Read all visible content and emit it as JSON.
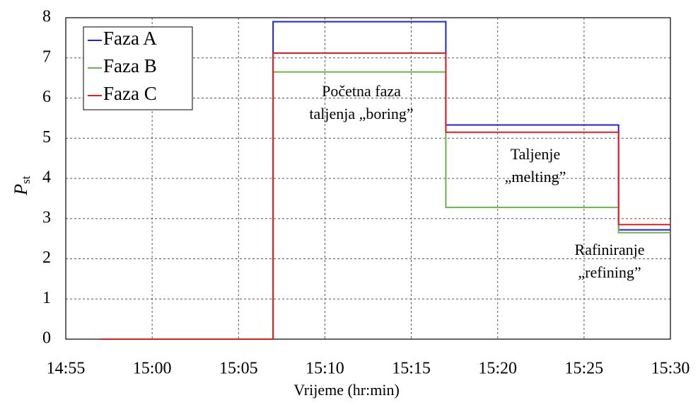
{
  "chart_data": {
    "type": "line",
    "step": "post",
    "xlabel": "Vrijeme (hr:min)",
    "ylabel": "P",
    "ylabel_sub": "st",
    "x": [
      "14:57",
      "15:07",
      "15:17",
      "15:27",
      "15:30"
    ],
    "series": [
      {
        "name": "Faza A",
        "color": "#2020e0",
        "values": [
          0,
          7.9,
          5.33,
          2.72,
          2.72
        ]
      },
      {
        "name": "Faza B",
        "color": "#6fb24a",
        "values": [
          0,
          6.65,
          3.28,
          2.65,
          2.65
        ]
      },
      {
        "name": "Faza C",
        "color": "#e02020",
        "values": [
          0,
          7.12,
          5.15,
          2.85,
          2.85
        ]
      }
    ],
    "xlim": [
      "14:55",
      "15:30"
    ],
    "xticks": [
      "14:55",
      "15:00",
      "15:05",
      "15:10",
      "15:15",
      "15:20",
      "15:25",
      "15:30"
    ],
    "ylim": [
      0,
      8
    ],
    "yticks": [
      0,
      1,
      2,
      3,
      4,
      5,
      6,
      7,
      8
    ],
    "grid": true,
    "legend": "upper left",
    "annotations": [
      [
        "Početna faza",
        "taljenja „boring”"
      ],
      [
        "Taljenje",
        "„melting”"
      ],
      [
        "Rafiniranje",
        "„refining”"
      ]
    ]
  }
}
